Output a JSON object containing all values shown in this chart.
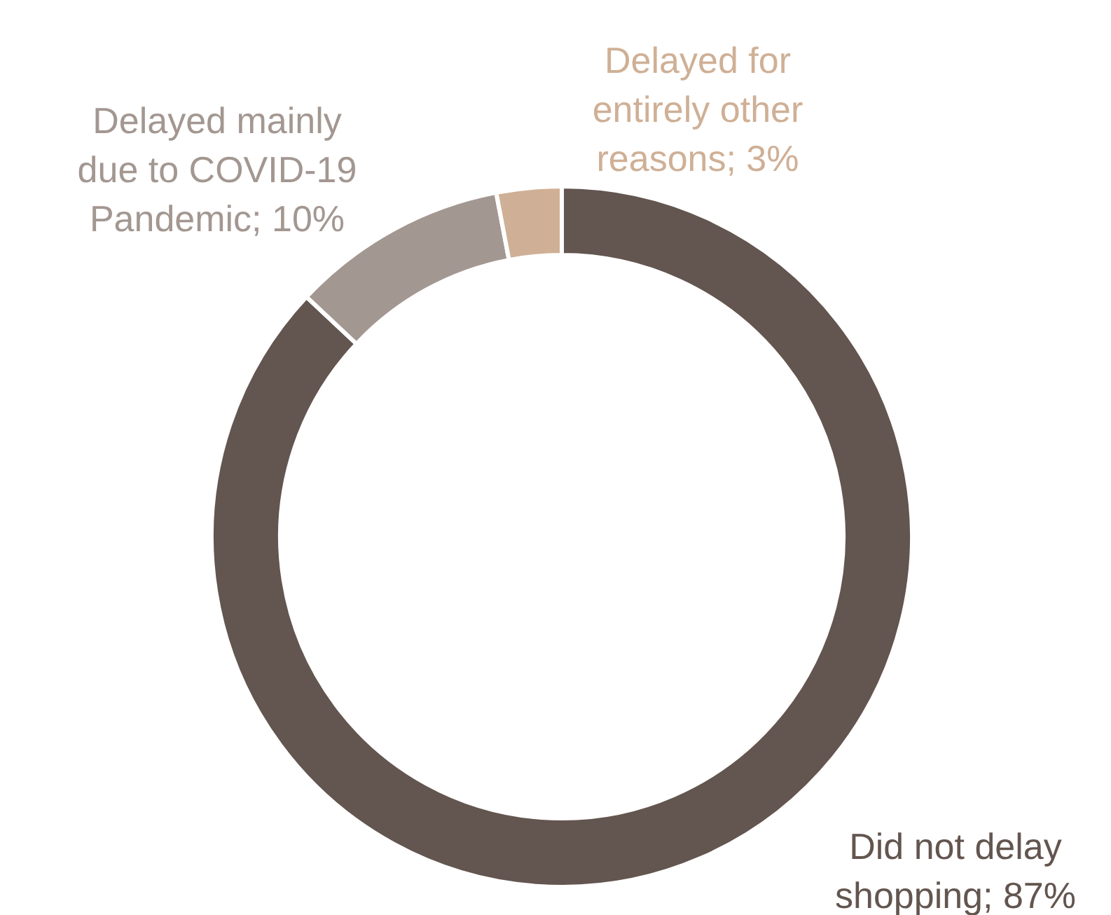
{
  "chart_data": {
    "type": "donut",
    "categories": [
      "Did not delay shopping",
      "Delayed mainly due to COVID-19 Pandemic",
      "Delayed for entirely other reasons"
    ],
    "values": [
      87,
      10,
      3
    ],
    "colors": [
      "#63554f",
      "#a39791",
      "#cfb096"
    ],
    "value_labels": [
      "87%",
      "10%",
      "3%"
    ]
  }
}
